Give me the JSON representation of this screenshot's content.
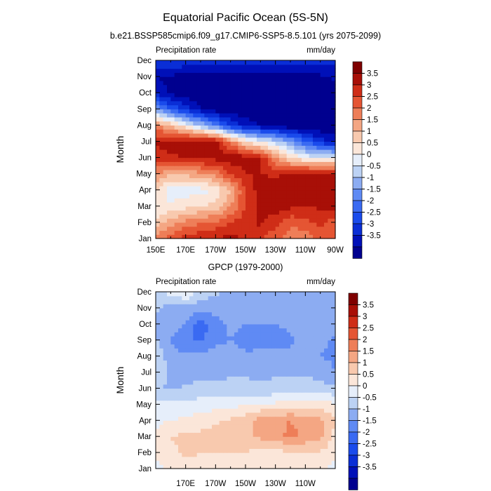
{
  "figure": {
    "title": "Equatorial Pacific Ocean (5S-5N)"
  },
  "colors": {
    "levels": [
      -3.5,
      -3,
      -2.5,
      -2,
      -1.5,
      -1,
      -0.5,
      0,
      0.5,
      1,
      1.5,
      2,
      2.5,
      3,
      3.5
    ],
    "palette": [
      "#00008f",
      "#0010b8",
      "#0a2ed6",
      "#1a4bec",
      "#3a6af2",
      "#5f8af4",
      "#8cacf2",
      "#bcd2f4",
      "#e6eefa",
      "#fbe6d9",
      "#f8c9ae",
      "#f4a683",
      "#ee7e58",
      "#e55533",
      "#cf2d17",
      "#a80f07",
      "#7f0000"
    ]
  },
  "chart_data": [
    {
      "type": "heatmap",
      "title": "b.e21.BSSP585cmip6.f09_g17.CMIP6-SSP5-8.5.101 (yrs 2075-2099)",
      "left_label": "Precipitation rate",
      "right_label": "mm/day",
      "ylabel": "Month",
      "xlabel": "",
      "x_ticks": [
        "150E",
        "170E",
        "170W",
        "150W",
        "130W",
        "110W",
        "90W"
      ],
      "y_ticks": [
        "Jan",
        "Feb",
        "Mar",
        "Apr",
        "May",
        "Jun",
        "Jul",
        "Aug",
        "Sep",
        "Oct",
        "Nov",
        "Dec"
      ],
      "colorbar_labels": [
        "3.5",
        "3",
        "2.5",
        "2",
        "1.5",
        "1",
        "0.5",
        "0",
        "-0.5",
        "-1",
        "-1.5",
        "-2",
        "-2.5",
        "-3",
        "-3.5"
      ],
      "lon_range": [
        150,
        270
      ],
      "x_lon": [
        150,
        160,
        170,
        180,
        190,
        200,
        210,
        220,
        230,
        240,
        250,
        260,
        270
      ],
      "values": [
        [
          2.2,
          2.8,
          3.2,
          3.5,
          3.6,
          3.6,
          3.5,
          3.0,
          2.6,
          2.2,
          2.2,
          2.6,
          2.8
        ],
        [
          1.2,
          1.8,
          2.2,
          2.4,
          2.6,
          3.0,
          3.3,
          3.6,
          3.2,
          2.6,
          2.8,
          3.2,
          2.6
        ],
        [
          0.5,
          0.6,
          0.8,
          1.0,
          1.2,
          2.0,
          3.0,
          3.6,
          3.8,
          3.6,
          3.5,
          3.6,
          3.8
        ],
        [
          1.0,
          0.2,
          0.3,
          0.3,
          0.6,
          1.5,
          3.0,
          3.8,
          3.8,
          3.8,
          3.8,
          3.8,
          3.8
        ],
        [
          2.0,
          1.6,
          1.6,
          1.8,
          2.2,
          3.0,
          3.5,
          3.5,
          3.4,
          3.6,
          3.8,
          3.8,
          3.8
        ],
        [
          3.2,
          3.4,
          3.5,
          3.6,
          3.7,
          3.8,
          3.8,
          3.5,
          2.0,
          1.0,
          0.4,
          0.2,
          0.3
        ],
        [
          3.6,
          3.8,
          3.8,
          3.8,
          3.8,
          2.2,
          1.0,
          0.4,
          -0.2,
          -1.0,
          -2.0,
          -2.8,
          -3.2
        ],
        [
          2.0,
          1.5,
          0.5,
          -0.5,
          -1.5,
          -2.5,
          -3.2,
          -3.5,
          -3.8,
          -3.9,
          -3.9,
          -3.9,
          -3.9
        ],
        [
          -1.0,
          -2.0,
          -2.8,
          -3.4,
          -3.8,
          -3.9,
          -3.9,
          -3.9,
          -3.9,
          -3.9,
          -3.9,
          -3.9,
          -3.9
        ],
        [
          -3.2,
          -3.6,
          -3.8,
          -3.9,
          -3.9,
          -3.9,
          -3.9,
          -3.9,
          -3.9,
          -3.9,
          -3.9,
          -3.9,
          -3.9
        ],
        [
          -3.5,
          -3.6,
          -3.7,
          -3.8,
          -3.9,
          -3.9,
          -3.9,
          -3.9,
          -3.9,
          -3.9,
          -3.8,
          -3.6,
          -3.4
        ],
        [
          -2.5,
          -2.6,
          -2.6,
          -2.6,
          -2.6,
          -2.6,
          -2.6,
          -2.6,
          -2.6,
          -2.6,
          -2.7,
          -2.7,
          -2.8
        ]
      ]
    },
    {
      "type": "heatmap",
      "title": "GPCP (1979-2000)",
      "left_label": "Precipitation rate",
      "right_label": "mm/day",
      "ylabel": "Month",
      "xlabel": "",
      "x_ticks": [
        "170E",
        "170W",
        "150W",
        "130W",
        "110W"
      ],
      "y_ticks": [
        "Jan",
        "Feb",
        "Mar",
        "Apr",
        "May",
        "Jun",
        "Jul",
        "Aug",
        "Sep",
        "Oct",
        "Nov",
        "Dec"
      ],
      "colorbar_labels": [
        "3.5",
        "3",
        "2.5",
        "2",
        "1.5",
        "1",
        "0.5",
        "0",
        "-0.5",
        "-1",
        "-1.5",
        "-2",
        "-2.5",
        "-3",
        "-3.5"
      ],
      "lon_range": [
        150,
        270
      ],
      "x_lon": [
        150,
        160,
        170,
        180,
        190,
        200,
        210,
        220,
        230,
        240,
        250,
        260,
        270
      ],
      "values": [
        [
          0.3,
          0.7,
          0.8,
          0.8,
          0.6,
          0.6,
          0.7,
          0.7,
          0.6,
          0.6,
          0.6,
          0.5,
          0.4
        ],
        [
          0.6,
          0.9,
          1.1,
          1.0,
          1.0,
          1.0,
          1.0,
          0.8,
          0.8,
          0.9,
          1.0,
          0.9,
          0.6
        ],
        [
          0.5,
          1.0,
          1.1,
          1.1,
          1.2,
          1.3,
          1.4,
          1.6,
          1.7,
          2.2,
          1.8,
          1.7,
          0.8
        ],
        [
          0.4,
          0.5,
          0.6,
          0.8,
          0.9,
          1.1,
          1.3,
          1.8,
          1.9,
          2.0,
          1.8,
          1.7,
          1.0
        ],
        [
          0.1,
          0.1,
          0.1,
          0.2,
          0.3,
          0.4,
          0.4,
          0.5,
          0.6,
          0.7,
          0.8,
          0.7,
          0.6
        ],
        [
          -0.4,
          -0.6,
          -0.4,
          -0.2,
          -0.3,
          -0.3,
          -0.3,
          -0.4,
          -0.3,
          -0.2,
          -0.2,
          -0.3,
          -0.4
        ],
        [
          0.1,
          -0.6,
          -0.8,
          -0.8,
          -0.7,
          -0.6,
          -0.6,
          -0.6,
          -0.6,
          -0.6,
          -0.6,
          -0.7,
          -1.0
        ],
        [
          -0.2,
          -0.8,
          -0.9,
          -0.8,
          -0.8,
          -0.8,
          -0.9,
          -0.8,
          -0.8,
          -0.8,
          -0.9,
          -1.0,
          -1.1
        ],
        [
          -0.4,
          -1.0,
          -1.4,
          -1.6,
          -1.1,
          -1.0,
          -1.2,
          -1.3,
          -1.3,
          -1.1,
          -0.8,
          -0.9,
          -1.1
        ],
        [
          -0.8,
          -0.7,
          -1.0,
          -1.8,
          -1.2,
          -0.9,
          -1.0,
          -1.0,
          -1.0,
          -0.9,
          -0.8,
          -0.8,
          -0.8
        ],
        [
          -0.3,
          -0.8,
          -0.8,
          -0.8,
          -0.8,
          -0.8,
          -0.7,
          -0.6,
          -0.6,
          -0.6,
          -0.6,
          -0.6,
          -0.6
        ],
        [
          -0.1,
          0.2,
          0.6,
          -0.2,
          -0.4,
          -0.6,
          -0.6,
          -0.6,
          -0.6,
          -0.6,
          -0.6,
          -0.6,
          -0.6
        ]
      ]
    }
  ]
}
